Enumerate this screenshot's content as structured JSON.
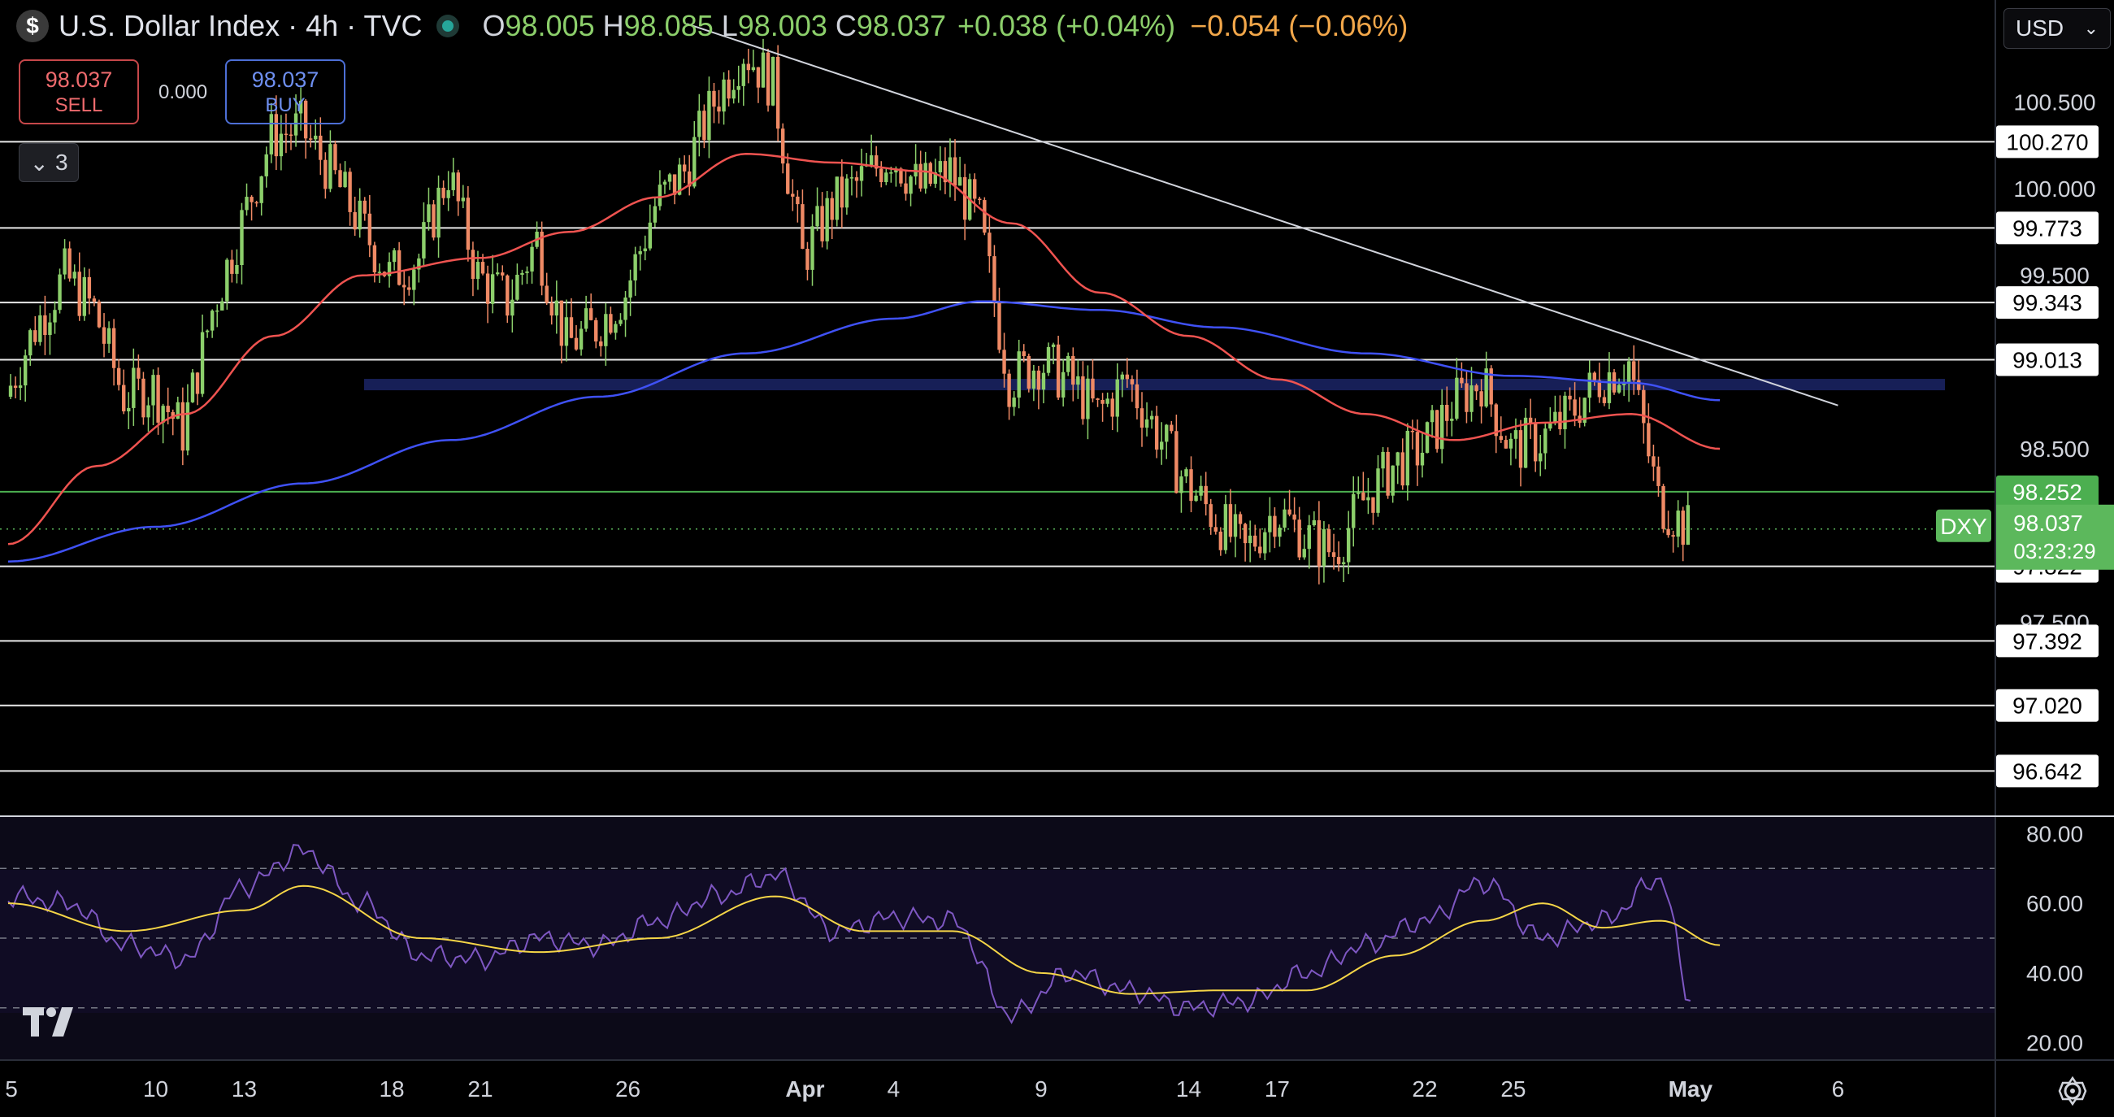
{
  "header": {
    "title": "U.S. Dollar Index · 4h · TVC",
    "open_label": "O",
    "open": "98.005",
    "high_label": "H",
    "high": "98.085",
    "low_label": "L",
    "low": "98.003",
    "close_label": "C",
    "close": "98.037",
    "change": "+0.038 (+0.04%)",
    "ext_change": "−0.054 (−0.06%)"
  },
  "trade": {
    "sell_price": "98.037",
    "sell_label": "SELL",
    "spread": "0.000",
    "buy_price": "98.037",
    "buy_label": "BUY"
  },
  "indicators_toggle": "3",
  "currency": "USD",
  "colors": {
    "bull": "#8ccf6b",
    "bear": "#ef8a65",
    "ma_short": "#ef5350",
    "ma_long": "#3f51f5",
    "rsi": "#7e57c2",
    "rsi_ma": "#f5d547",
    "price_tag": "#5cb85c"
  },
  "chart_data": {
    "type": "candlestick",
    "symbol": "DXY",
    "current_price": "98.037",
    "countdown": "03:23:29",
    "ylim": [
      96.4,
      101.05
    ],
    "y_ticks": [
      "100.500",
      "100.000",
      "99.500",
      "98.500",
      "97.500"
    ],
    "horizontal_levels": [
      "100.270",
      "99.773",
      "99.343",
      "99.013",
      "98.252",
      "97.822",
      "97.392",
      "97.020",
      "96.642"
    ],
    "x_ticks": [
      "5",
      "10",
      "13",
      "18",
      "21",
      "26",
      "Apr",
      "4",
      "9",
      "14",
      "17",
      "22",
      "25",
      "May",
      "6"
    ],
    "trendline": {
      "from": [
        "Mar 28",
        100.95
      ],
      "to": [
        "May 6",
        98.75
      ]
    },
    "support_zone": 98.87,
    "close_path": [
      [
        "Mar 5",
        98.8
      ],
      [
        "Mar 6",
        99.2
      ],
      [
        "Mar 7",
        99.5
      ],
      [
        "Mar 8",
        99.3
      ],
      [
        "Mar 9",
        98.8
      ],
      [
        "Mar 10",
        98.85
      ],
      [
        "Mar 11",
        98.6
      ],
      [
        "Mar 12",
        99.3
      ],
      [
        "Mar 13",
        99.8
      ],
      [
        "Mar 14",
        100.3
      ],
      [
        "Mar 15",
        100.35
      ],
      [
        "Mar 16",
        100.1
      ],
      [
        "Mar 17",
        99.8
      ],
      [
        "Mar 18",
        99.5
      ],
      [
        "Mar 19",
        99.6
      ],
      [
        "Mar 20",
        100.1
      ],
      [
        "Mar 21",
        99.5
      ],
      [
        "Mar 22",
        99.35
      ],
      [
        "Mar 23",
        99.7
      ],
      [
        "Mar 24",
        99.1
      ],
      [
        "Mar 25",
        99.2
      ],
      [
        "Mar 26",
        99.4
      ],
      [
        "Mar 27",
        99.9
      ],
      [
        "Mar 28",
        100.1
      ],
      [
        "Mar 29",
        100.5
      ],
      [
        "Mar 30",
        100.8
      ],
      [
        "Mar 31",
        100.6
      ],
      [
        "Apr 1",
        99.6
      ],
      [
        "Apr 2",
        99.9
      ],
      [
        "Apr 3",
        100.05
      ],
      [
        "Apr 4",
        100.2
      ],
      [
        "Apr 5",
        100.0
      ],
      [
        "Apr 6",
        100.1
      ],
      [
        "Apr 7",
        99.8
      ],
      [
        "Apr 8",
        98.9
      ],
      [
        "Apr 9",
        99.0
      ],
      [
        "Apr 10",
        98.9
      ],
      [
        "Apr 11",
        98.7
      ],
      [
        "Apr 12",
        98.9
      ],
      [
        "Apr 13",
        98.6
      ],
      [
        "Apr 14",
        98.3
      ],
      [
        "Apr 15",
        98.1
      ],
      [
        "Apr 16",
        97.9
      ],
      [
        "Apr 17",
        98.15
      ],
      [
        "Apr 18",
        98.0
      ],
      [
        "Apr 19",
        97.9
      ],
      [
        "Apr 20",
        98.2
      ],
      [
        "Apr 21",
        98.4
      ],
      [
        "Apr 22",
        98.5
      ],
      [
        "Apr 23",
        98.75
      ],
      [
        "Apr 24",
        98.9
      ],
      [
        "Apr 25",
        98.5
      ],
      [
        "Apr 26",
        98.55
      ],
      [
        "Apr 27",
        98.7
      ],
      [
        "Apr 28",
        98.9
      ],
      [
        "Apr 29",
        99.0
      ],
      [
        "Apr 30",
        98.2
      ],
      [
        "May 1",
        98.037
      ]
    ],
    "ma_short": [
      [
        "Mar 5",
        97.95
      ],
      [
        "Mar 8",
        98.4
      ],
      [
        "Mar 11",
        98.7
      ],
      [
        "Mar 14",
        99.15
      ],
      [
        "Mar 17",
        99.5
      ],
      [
        "Mar 21",
        99.6
      ],
      [
        "Mar 24",
        99.75
      ],
      [
        "Mar 27",
        99.95
      ],
      [
        "Mar 30",
        100.2
      ],
      [
        "Apr 2",
        100.15
      ],
      [
        "Apr 5",
        100.1
      ],
      [
        "Apr 8",
        99.8
      ],
      [
        "Apr 11",
        99.4
      ],
      [
        "Apr 14",
        99.15
      ],
      [
        "Apr 17",
        98.9
      ],
      [
        "Apr 20",
        98.7
      ],
      [
        "Apr 23",
        98.55
      ],
      [
        "Apr 26",
        98.65
      ],
      [
        "Apr 29",
        98.7
      ],
      [
        "May 2",
        98.5
      ]
    ],
    "ma_long": [
      [
        "Mar 5",
        97.85
      ],
      [
        "Mar 10",
        98.05
      ],
      [
        "Mar 15",
        98.3
      ],
      [
        "Mar 20",
        98.55
      ],
      [
        "Mar 25",
        98.8
      ],
      [
        "Mar 30",
        99.05
      ],
      [
        "Apr 4",
        99.25
      ],
      [
        "Apr 7",
        99.35
      ],
      [
        "Apr 11",
        99.3
      ],
      [
        "Apr 15",
        99.2
      ],
      [
        "Apr 20",
        99.05
      ],
      [
        "Apr 25",
        98.92
      ],
      [
        "Apr 29",
        98.88
      ],
      [
        "May 2",
        98.78
      ]
    ],
    "rsi": {
      "ylim": [
        15,
        85
      ],
      "y_ticks": [
        "80.00",
        "60.00",
        "40.00",
        "20.00"
      ],
      "bands": [
        70,
        50,
        30
      ],
      "rsi_values": [
        [
          "Mar 5",
          62
        ],
        [
          "Mar 7",
          60
        ],
        [
          "Mar 9",
          48
        ],
        [
          "Mar 11",
          44
        ],
        [
          "Mar 13",
          65
        ],
        [
          "Mar 15",
          75
        ],
        [
          "Mar 17",
          60
        ],
        [
          "Mar 19",
          45
        ],
        [
          "Mar 21",
          44
        ],
        [
          "Mar 23",
          50
        ],
        [
          "Mar 25",
          48
        ],
        [
          "Mar 27",
          55
        ],
        [
          "Mar 29",
          62
        ],
        [
          "Mar 31",
          68
        ],
        [
          "Apr 2",
          52
        ],
        [
          "Apr 4",
          56
        ],
        [
          "Apr 6",
          55
        ],
        [
          "Apr 8",
          28
        ],
        [
          "Apr 10",
          40
        ],
        [
          "Apr 12",
          35
        ],
        [
          "Apr 14",
          30
        ],
        [
          "Apr 16",
          32
        ],
        [
          "Apr 18",
          40
        ],
        [
          "Apr 20",
          48
        ],
        [
          "Apr 22",
          55
        ],
        [
          "Apr 24",
          66
        ],
        [
          "Apr 26",
          50
        ],
        [
          "Apr 28",
          55
        ],
        [
          "Apr 30",
          67
        ],
        [
          "May 1",
          33
        ]
      ],
      "rsi_ma": [
        [
          "Mar 5",
          60
        ],
        [
          "Mar 9",
          52
        ],
        [
          "Mar 13",
          58
        ],
        [
          "Mar 15",
          65
        ],
        [
          "Mar 19",
          50
        ],
        [
          "Mar 23",
          46
        ],
        [
          "Mar 27",
          50
        ],
        [
          "Mar 31",
          62
        ],
        [
          "Apr 3",
          52
        ],
        [
          "Apr 6",
          52
        ],
        [
          "Apr 9",
          40
        ],
        [
          "Apr 12",
          34
        ],
        [
          "Apr 15",
          35
        ],
        [
          "Apr 18",
          35
        ],
        [
          "Apr 21",
          45
        ],
        [
          "Apr 24",
          55
        ],
        [
          "Apr 26",
          60
        ],
        [
          "Apr 28",
          53
        ],
        [
          "Apr 30",
          55
        ],
        [
          "May 2",
          48
        ]
      ]
    }
  }
}
